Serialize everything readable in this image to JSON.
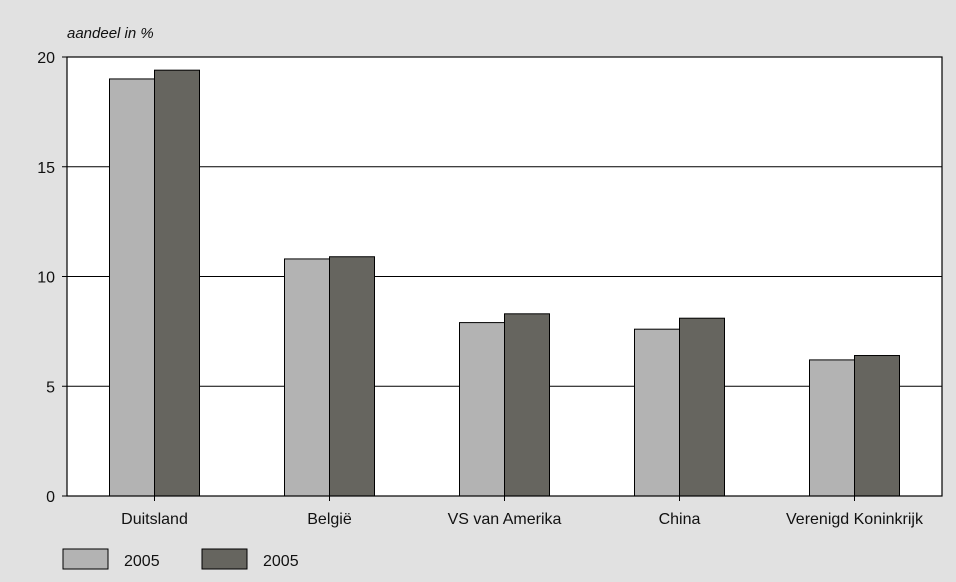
{
  "chart_data": {
    "type": "bar",
    "title": "",
    "xlabel": "",
    "ylabel": "aandeel in %",
    "ylim": [
      0,
      20
    ],
    "yticks": [
      0,
      5,
      10,
      15,
      20
    ],
    "grid": true,
    "legend_position": "bottom-left",
    "categories": [
      "Duitsland",
      "België",
      "VS van Amerika",
      "China",
      "Verenigd Koninkrijk"
    ],
    "series": [
      {
        "name": "2005",
        "color": "#b3b3b3",
        "values": [
          19.0,
          10.8,
          7.9,
          7.6,
          6.2
        ]
      },
      {
        "name": "2005",
        "color": "#66655f",
        "values": [
          19.4,
          10.9,
          8.3,
          8.1,
          6.4
        ]
      }
    ]
  }
}
